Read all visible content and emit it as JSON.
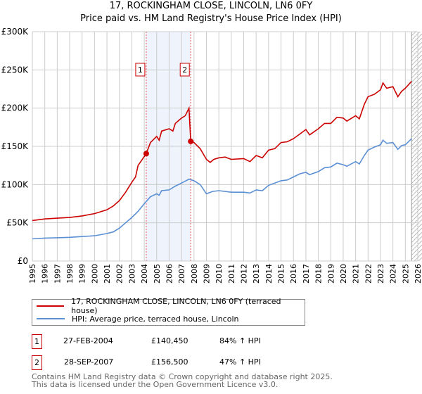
{
  "chart_data": {
    "type": "line",
    "title": "17, ROCKINGHAM CLOSE, LINCOLN, LN6 0FY",
    "subtitle": "Price paid vs. HM Land Registry's House Price Index (HPI)",
    "xlim": [
      1995,
      2026
    ],
    "ylim": [
      0,
      300000
    ],
    "y_ticks": [
      0,
      50000,
      100000,
      150000,
      200000,
      250000,
      300000
    ],
    "y_tick_labels": [
      "£0",
      "£50K",
      "£100K",
      "£150K",
      "£200K",
      "£250K",
      "£300K"
    ],
    "x_tick_labels": [
      "1995",
      "1996",
      "1997",
      "1998",
      "1999",
      "2000",
      "2001",
      "2002",
      "2003",
      "2004",
      "2005",
      "2006",
      "2007",
      "2008",
      "2009",
      "2010",
      "2011",
      "2012",
      "2013",
      "2014",
      "2015",
      "2016",
      "2017",
      "2018",
      "2019",
      "2020",
      "2021",
      "2022",
      "2023",
      "2024",
      "2025",
      "2026"
    ],
    "grid": true,
    "shaded_period": [
      2004.16,
      2007.74
    ],
    "forecast_hatch_from": 2025.5,
    "series": [
      {
        "name": "17, ROCKINGHAM CLOSE, LINCOLN, LN6 0FY (terraced house)",
        "color": "#cc0000",
        "x": [
          1995,
          1996,
          1997,
          1998,
          1999,
          2000,
          2001,
          2001.5,
          2002,
          2002.5,
          2003,
          2003.3,
          2003.5,
          2004.16,
          2004.5,
          2005,
          2005.2,
          2005.4,
          2006,
          2006.3,
          2006.5,
          2007,
          2007.3,
          2007.6,
          2007.74,
          2008,
          2008.5,
          2009,
          2009.3,
          2009.6,
          2010,
          2010.5,
          2011,
          2012,
          2012.5,
          2013,
          2013.5,
          2014,
          2014.5,
          2015,
          2015.5,
          2016,
          2016.5,
          2017,
          2017.3,
          2018,
          2018.5,
          2019,
          2019.5,
          2020,
          2020.3,
          2021,
          2021.3,
          2021.7,
          2022,
          2022.5,
          2023,
          2023.2,
          2023.5,
          2024,
          2024.4,
          2024.7,
          2025,
          2025.5
        ],
        "y": [
          53000,
          55000,
          56000,
          57000,
          59000,
          62000,
          67000,
          72000,
          79000,
          90000,
          103000,
          110000,
          125000,
          140450,
          155000,
          163000,
          158000,
          170000,
          173000,
          170000,
          180000,
          187000,
          190000,
          200000,
          156500,
          155000,
          147000,
          133000,
          129000,
          133000,
          135000,
          136000,
          133000,
          134000,
          130000,
          138000,
          135000,
          145000,
          147000,
          155000,
          156000,
          160000,
          166000,
          172000,
          165000,
          173000,
          180000,
          180000,
          188000,
          187000,
          183000,
          190000,
          186000,
          205000,
          215000,
          218000,
          224000,
          233000,
          226000,
          228000,
          215000,
          222000,
          226000,
          235000
        ]
      },
      {
        "name": "HPI: Average price, terraced house, Lincoln",
        "color": "#5b8fd4",
        "x": [
          1995,
          1996,
          1997,
          1998,
          1999,
          2000,
          2001,
          2001.5,
          2002,
          2002.5,
          2003,
          2003.5,
          2004,
          2004.5,
          2005,
          2005.2,
          2005.4,
          2006,
          2006.5,
          2007,
          2007.6,
          2008,
          2008.5,
          2009,
          2009.5,
          2010,
          2011,
          2012,
          2012.5,
          2013,
          2013.5,
          2014,
          2015,
          2015.5,
          2016,
          2016.5,
          2017,
          2017.3,
          2018,
          2018.5,
          2019,
          2019.5,
          2020,
          2020.3,
          2021,
          2021.3,
          2021.7,
          2022,
          2022.5,
          2023,
          2023.2,
          2023.5,
          2024,
          2024.4,
          2024.7,
          2025,
          2025.5
        ],
        "y": [
          29000,
          30000,
          30500,
          31000,
          32000,
          33000,
          36000,
          38000,
          43000,
          50000,
          57000,
          65000,
          75000,
          84000,
          88000,
          86000,
          92000,
          93000,
          98000,
          102000,
          107000,
          105000,
          100000,
          88000,
          91000,
          92000,
          90000,
          90000,
          89000,
          93000,
          92000,
          99000,
          105000,
          106000,
          110000,
          114000,
          116000,
          113000,
          117000,
          122000,
          123000,
          128000,
          126000,
          124000,
          130000,
          127000,
          138000,
          145000,
          149000,
          152000,
          158000,
          154000,
          155000,
          146000,
          151000,
          152000,
          160000
        ]
      }
    ],
    "markers": [
      {
        "label": "1",
        "x": 2004.16,
        "y": 140450
      },
      {
        "label": "2",
        "x": 2007.74,
        "y": 156500
      }
    ]
  },
  "legend": [
    "17, ROCKINGHAM CLOSE, LINCOLN, LN6 0FY (terraced house)",
    "HPI: Average price, terraced house, Lincoln"
  ],
  "transactions": [
    {
      "num": "1",
      "date": "27-FEB-2004",
      "price": "£140,450",
      "hpi": "84% ↑ HPI"
    },
    {
      "num": "2",
      "date": "28-SEP-2007",
      "price": "£156,500",
      "hpi": "47% ↑ HPI"
    }
  ],
  "footer": [
    "Contains HM Land Registry data © Crown copyright and database right 2025.",
    "This data is licensed under the Open Government Licence v3.0."
  ]
}
